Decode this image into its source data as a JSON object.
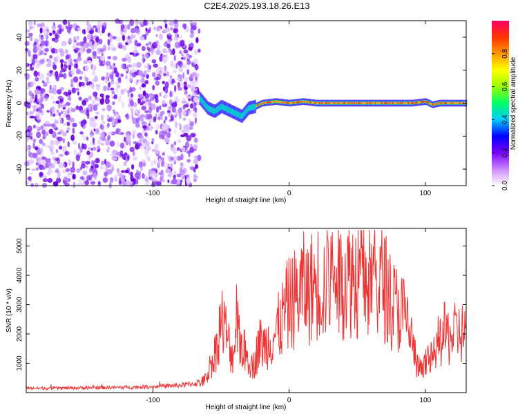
{
  "title": "C2E4.2025.193.18.26.E13",
  "chart_data": [
    {
      "type": "heatmap",
      "title": "C2E4.2025.193.18.26.E13",
      "xlabel": "Height of straight line (km)",
      "ylabel": "Frequency (Hz)",
      "xlim": [
        -193,
        130
      ],
      "ylim": [
        -50,
        50
      ],
      "xticks": [
        -100,
        0,
        100
      ],
      "yticks": [
        -40,
        -20,
        0,
        20,
        40
      ],
      "xtick_labels": [
        "-100",
        "0",
        "100"
      ],
      "ytick_labels": [
        "-40",
        "-20",
        "0",
        "20",
        "40"
      ],
      "noise_region_x": [
        -193,
        -66
      ],
      "signal_track": {
        "x": [
          -66,
          -60,
          -55,
          -50,
          -45,
          -40,
          -35,
          -30,
          -25,
          -20,
          -10,
          0,
          10,
          20,
          40,
          60,
          80,
          90,
          100,
          105,
          110,
          130
        ],
        "y": [
          3,
          -3,
          -5,
          -2,
          -4,
          -6,
          -8,
          -3,
          -2,
          0,
          1,
          0,
          1,
          0,
          0,
          0,
          0,
          0,
          1,
          -1,
          0,
          0
        ]
      },
      "colorbar": {
        "label": "Normalized spectral amplitude",
        "range": [
          0.0,
          1.0
        ],
        "ticks": [
          0.0,
          0.2,
          0.4,
          0.6,
          0.8
        ],
        "tick_labels": [
          "0.0",
          "0.2",
          "0.4",
          "0.6",
          "0.8"
        ],
        "colors": [
          "#ffffff",
          "#cc88ff",
          "#7a00ff",
          "#0000ff",
          "#00ccff",
          "#00ff66",
          "#99ff00",
          "#ffff00",
          "#ff9900",
          "#ff3300",
          "#ff0066"
        ]
      }
    },
    {
      "type": "line",
      "xlabel": "Height of straight line (km)",
      "ylabel": "SNR (10 * v/v)",
      "xlim": [
        -193,
        130
      ],
      "ylim": [
        0,
        5600
      ],
      "xticks": [
        -100,
        0,
        100
      ],
      "yticks": [
        1000,
        2000,
        3000,
        4000,
        5000
      ],
      "xtick_labels": [
        "-100",
        "0",
        "100"
      ],
      "ytick_labels": [
        "1000",
        "2000",
        "3000",
        "4000",
        "5000"
      ],
      "color": "#ee3333",
      "series": [
        {
          "x": [
            -193,
            -180,
            -160,
            -140,
            -120,
            -100,
            -80,
            -70,
            -62,
            -58,
            -54,
            -50,
            -46,
            -42,
            -38,
            -34,
            -30,
            -26,
            -22,
            -18,
            -14,
            -10,
            -6,
            -2,
            2,
            6,
            10,
            14,
            18,
            22,
            26,
            30,
            34,
            38,
            42,
            46,
            50,
            54,
            58,
            62,
            66,
            70,
            74,
            78,
            82,
            86,
            90,
            94,
            98,
            102,
            106,
            110,
            114,
            118,
            122,
            126,
            130
          ],
          "y": [
            150,
            150,
            160,
            170,
            180,
            200,
            250,
            300,
            400,
            900,
            1400,
            2500,
            2000,
            1200,
            2200,
            1500,
            1200,
            900,
            1700,
            1600,
            1800,
            2000,
            2400,
            2900,
            3100,
            3300,
            3600,
            3400,
            3700,
            3800,
            3600,
            3900,
            4000,
            3800,
            4100,
            4000,
            3900,
            4000,
            3800,
            3900,
            3800,
            3700,
            3200,
            2900,
            2800,
            2500,
            1800,
            900,
            700,
            1200,
            1100,
            1700,
            2000,
            1900,
            2000,
            2050,
            2000
          ]
        }
      ]
    }
  ]
}
